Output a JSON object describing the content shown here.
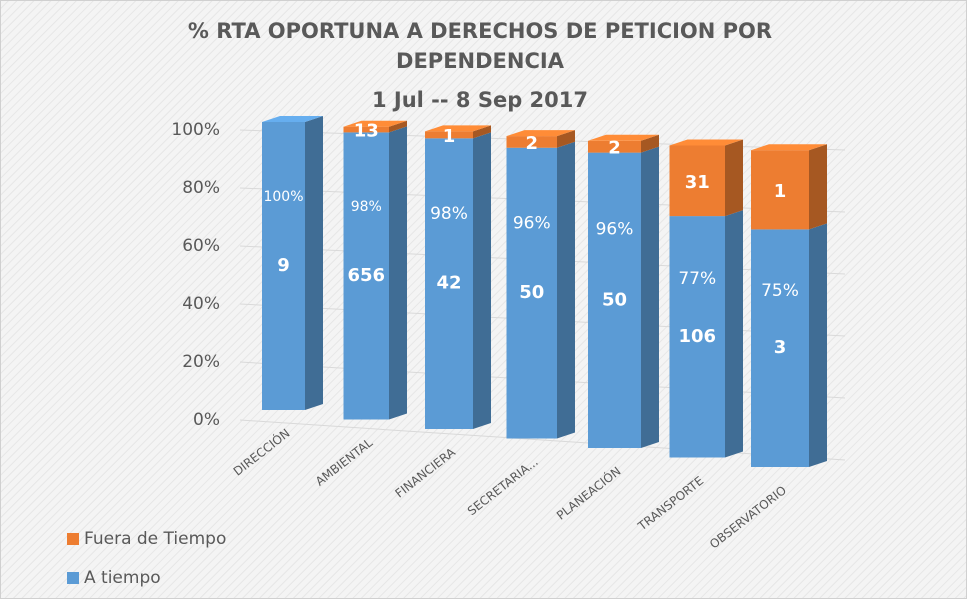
{
  "chart_data": {
    "type": "bar3d_stacked_percent",
    "title": "% RTA OPORTUNA A DERECHOS DE PETICION  POR DEPENDENCIA",
    "subtitle": "1 Jul -- 8 Sep 2017",
    "categories": [
      "DIRECCIÓN",
      "AMBIENTAL",
      "FINANCIERA",
      "SECRETARIA...",
      "PLANEACIÓN",
      "TRANSPORTE",
      "OBSERVATORIO"
    ],
    "series": [
      {
        "name": "A tiempo",
        "color": "#5b9bd5",
        "values": [
          9,
          656,
          42,
          50,
          50,
          106,
          3
        ]
      },
      {
        "name": "Fuera de Tiempo",
        "color": "#ed7d31",
        "values": [
          null,
          13,
          1,
          2,
          2,
          31,
          1
        ]
      }
    ],
    "percent_labels": [
      "100%",
      "98%",
      "98%",
      "96%",
      "96%",
      "77%",
      "75%"
    ],
    "ylim": [
      0,
      100
    ],
    "yticks": [
      {
        "value": 0,
        "label": "0%"
      },
      {
        "value": 20,
        "label": "20%"
      },
      {
        "value": 40,
        "label": "40%"
      },
      {
        "value": 60,
        "label": "60%"
      },
      {
        "value": 80,
        "label": "80%"
      },
      {
        "value": 100,
        "label": "100%"
      }
    ],
    "grid": true
  }
}
